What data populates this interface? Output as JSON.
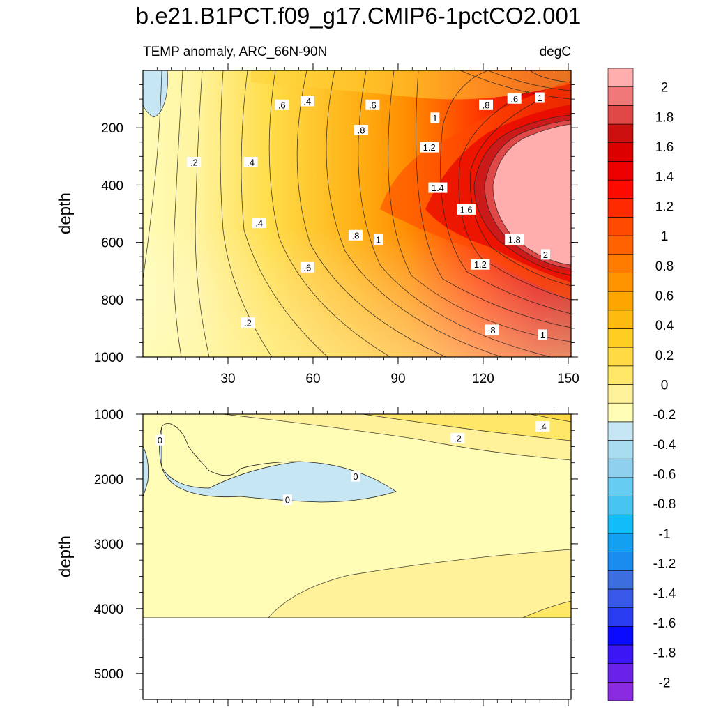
{
  "chart_data": [
    {
      "type": "contour",
      "panel": "upper",
      "title": "b.e21.B1PCT.f09_g17.CMIP6-1pctCO2.001",
      "left_subtitle": "TEMP anomaly, ARC_66N-90N",
      "right_subtitle": "degC",
      "xlabel": "",
      "ylabel": "depth",
      "xlim": [
        0,
        151
      ],
      "ylim": [
        0,
        1000
      ],
      "y_reversed": true,
      "x_ticks": [
        30,
        60,
        90,
        120,
        150
      ],
      "x_tick_labels": [
        "30",
        "60",
        "90",
        "120",
        "150"
      ],
      "y_ticks": [
        200,
        400,
        600,
        800,
        1000
      ],
      "y_tick_labels": [
        "200",
        "400",
        "600",
        "800",
        "1000"
      ],
      "contour_labels": [
        {
          "text": ".6",
          "x": 49,
          "y": 120
        },
        {
          "text": ".4",
          "x": 58,
          "y": 107
        },
        {
          "text": ".6",
          "x": 81,
          "y": 120
        },
        {
          "text": ".8",
          "x": 121,
          "y": 120
        },
        {
          "text": ".6",
          "x": 131,
          "y": 98
        },
        {
          "text": "1",
          "x": 140,
          "y": 95
        },
        {
          "text": "1",
          "x": 103,
          "y": 165
        },
        {
          "text": ".8",
          "x": 77,
          "y": 208
        },
        {
          "text": "1.2",
          "x": 101,
          "y": 268
        },
        {
          "text": ".2",
          "x": 18,
          "y": 320
        },
        {
          "text": ".4",
          "x": 38,
          "y": 320
        },
        {
          "text": "1.4",
          "x": 104,
          "y": 409
        },
        {
          "text": "1.6",
          "x": 114,
          "y": 485
        },
        {
          "text": ".4",
          "x": 41,
          "y": 532
        },
        {
          "text": ".8",
          "x": 75,
          "y": 575
        },
        {
          "text": "1",
          "x": 83,
          "y": 590
        },
        {
          "text": "1.8",
          "x": 131,
          "y": 590
        },
        {
          "text": "2",
          "x": 142,
          "y": 642
        },
        {
          "text": "1.2",
          "x": 119,
          "y": 677
        },
        {
          "text": ".6",
          "x": 58,
          "y": 687
        },
        {
          "text": ".2",
          "x": 37,
          "y": 880
        },
        {
          "text": ".8",
          "x": 123,
          "y": 905
        },
        {
          "text": "1",
          "x": 141,
          "y": 922
        }
      ]
    },
    {
      "type": "contour",
      "panel": "lower",
      "xlabel": "",
      "ylabel": "depth",
      "xlim": [
        0,
        151
      ],
      "ylim": [
        1000,
        5400
      ],
      "y_reversed": true,
      "x_ticks": [
        30,
        60,
        90,
        120,
        150
      ],
      "y_ticks": [
        1000,
        2000,
        3000,
        4000,
        5000
      ],
      "y_tick_labels": [
        "1000",
        "2000",
        "3000",
        "4000",
        "5000"
      ],
      "bottom_depth": 4120,
      "contour_labels": [
        {
          "text": "0",
          "x": 6,
          "y": 1400
        },
        {
          "text": "0",
          "x": 75,
          "y": 1960
        },
        {
          "text": "0",
          "x": 51,
          "y": 2320
        },
        {
          "text": ".2",
          "x": 111,
          "y": 1370
        },
        {
          "text": ".4",
          "x": 141,
          "y": 1190
        }
      ]
    },
    {
      "type": "colorbar",
      "levels": [
        -2,
        -1.8,
        -1.6,
        -1.4,
        -1.2,
        -1,
        -0.8,
        -0.6,
        -0.4,
        -0.2,
        0,
        0.2,
        0.4,
        0.6,
        0.8,
        1,
        1.2,
        1.4,
        1.6,
        1.8,
        2
      ],
      "level_labels": [
        "-2",
        "-1.8",
        "-1.6",
        "-1.4",
        "-1.2",
        "-1",
        "-0.8",
        "-0.6",
        "-0.4",
        "-0.2",
        "0",
        "0.2",
        "0.4",
        "0.6",
        "0.8",
        "1",
        "1.2",
        "1.4",
        "1.6",
        "1.8",
        "2"
      ],
      "colors": [
        "#8a2be2",
        "#6a22e8",
        "#3c16f4",
        "#0a0aff",
        "#2a3cf0",
        "#3858e8",
        "#3c6ee0",
        "#1a8cf0",
        "#14a0f0",
        "#12bcf8",
        "#48c4f2",
        "#66ccf2",
        "#8ed0ee",
        "#a8dcf0",
        "#c6e6f4",
        "#fffcb6",
        "#fff29a",
        "#ffe868",
        "#ffda44",
        "#ffcc22",
        "#ffba10",
        "#ffa500",
        "#ff9300",
        "#ff7c00",
        "#ff6200",
        "#ff4a00",
        "#ff2a00",
        "#ff0a00",
        "#ee0000",
        "#dc0000",
        "#cc1010",
        "#e04848",
        "#f07878",
        "#ffadad"
      ]
    }
  ]
}
